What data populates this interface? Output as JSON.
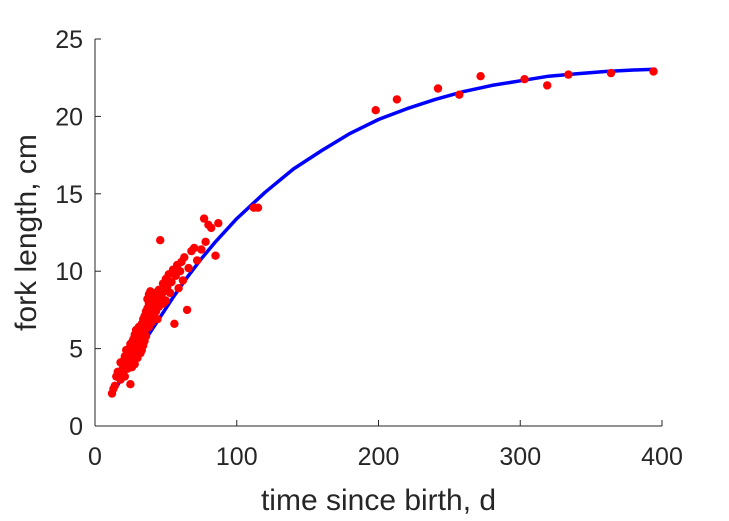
{
  "chart_data": {
    "type": "scatter",
    "title": "",
    "xlabel": "time since birth, d",
    "ylabel": "fork length, cm",
    "xlim": [
      0,
      400
    ],
    "ylim": [
      0,
      25
    ],
    "xticks": [
      "0",
      "100",
      "200",
      "300",
      "400"
    ],
    "yticks": [
      "0",
      "5",
      "10",
      "15",
      "20",
      "25"
    ],
    "grid": false,
    "legend": "none",
    "colors": {
      "points": "#ff0000",
      "fit": "#0000ff",
      "axis": "#262626"
    },
    "fit_curve": {
      "type": "line",
      "x": [
        15,
        25,
        35,
        45,
        55,
        65,
        75,
        85,
        100,
        120,
        140,
        160,
        180,
        200,
        220,
        240,
        260,
        280,
        300,
        320,
        340,
        360,
        380,
        395
      ],
      "y": [
        2.5,
        4.0,
        5.5,
        6.9,
        8.3,
        9.6,
        10.8,
        11.9,
        13.4,
        15.1,
        16.6,
        17.8,
        18.9,
        19.8,
        20.5,
        21.1,
        21.6,
        22.0,
        22.3,
        22.6,
        22.75,
        22.9,
        23.0,
        23.05
      ]
    },
    "points": {
      "x": [
        12,
        13,
        14,
        15,
        16,
        17,
        18,
        18,
        19,
        20,
        20,
        21,
        21,
        22,
        22,
        23,
        23,
        24,
        24,
        25,
        25,
        25,
        26,
        26,
        26,
        27,
        27,
        27,
        28,
        28,
        28,
        29,
        29,
        29,
        30,
        30,
        30,
        31,
        31,
        31,
        32,
        32,
        32,
        33,
        33,
        33,
        34,
        34,
        34,
        35,
        35,
        35,
        36,
        36,
        36,
        37,
        37,
        37,
        38,
        38,
        38,
        39,
        39,
        39,
        40,
        40,
        40,
        41,
        41,
        42,
        42,
        43,
        43,
        44,
        44,
        45,
        45,
        46,
        47,
        48,
        48,
        49,
        50,
        50,
        51,
        52,
        53,
        54,
        55,
        56,
        57,
        58,
        59,
        60,
        61,
        62,
        63,
        65,
        66,
        68,
        70,
        72,
        75,
        77,
        78,
        80,
        82,
        85,
        87,
        112,
        115,
        198,
        213,
        242,
        257,
        272,
        303,
        319,
        334,
        364,
        394
      ],
      "y": [
        2.1,
        2.4,
        2.6,
        3.2,
        3.5,
        3.3,
        4.1,
        3.0,
        3.6,
        4.2,
        3.8,
        4.5,
        3.2,
        4.0,
        4.9,
        4.4,
        3.7,
        5.0,
        4.2,
        2.7,
        4.6,
        5.3,
        4.1,
        5.4,
        3.8,
        4.8,
        5.6,
        4.3,
        5.2,
        4.0,
        5.9,
        4.6,
        5.5,
        6.2,
        4.9,
        5.7,
        4.4,
        5.1,
        6.0,
        6.4,
        5.3,
        4.7,
        6.1,
        5.6,
        6.6,
        4.9,
        5.8,
        6.9,
        5.2,
        6.1,
        7.1,
        5.5,
        6.3,
        7.4,
        5.8,
        6.6,
        7.6,
        8.2,
        6.4,
        7.9,
        8.5,
        6.8,
        7.5,
        8.7,
        7.2,
        8.0,
        6.7,
        7.6,
        8.4,
        7.9,
        8.6,
        7.4,
        8.2,
        8.0,
        6.9,
        8.8,
        7.7,
        12.0,
        8.4,
        9.2,
        7.9,
        8.7,
        9.5,
        8.1,
        9.0,
        9.8,
        8.6,
        9.3,
        10.1,
        6.6,
        9.7,
        10.4,
        8.9,
        10.0,
        10.6,
        9.4,
        10.9,
        7.5,
        10.2,
        11.3,
        11.5,
        10.7,
        11.4,
        13.4,
        11.9,
        13.0,
        12.8,
        11.0,
        13.1,
        14.1,
        14.1,
        20.4,
        21.1,
        21.8,
        21.4,
        22.6,
        22.4,
        22.0,
        22.7,
        22.8,
        22.9
      ]
    }
  }
}
